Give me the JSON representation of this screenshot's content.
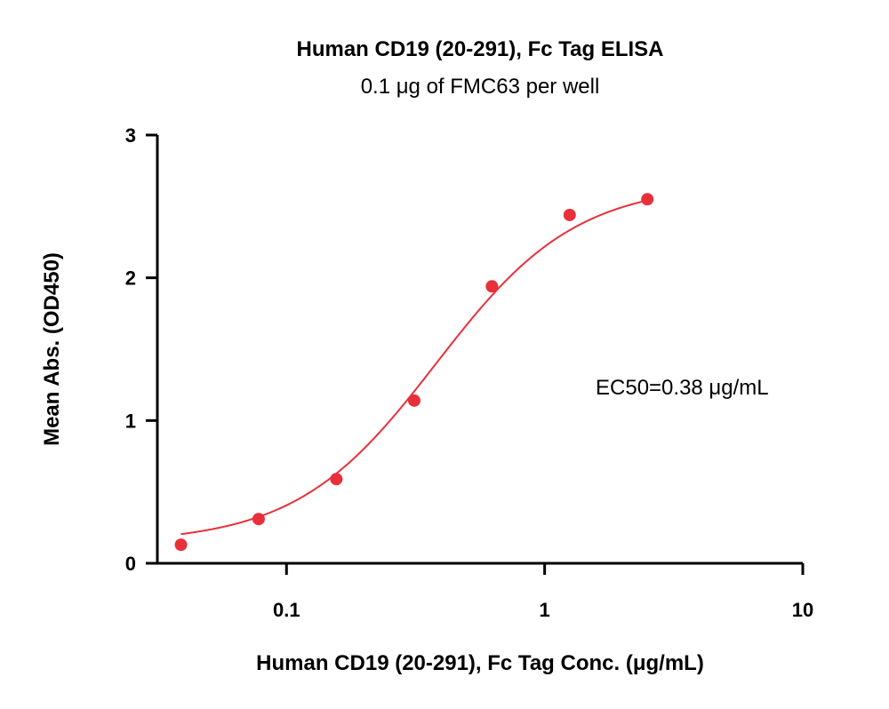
{
  "chart_data": {
    "type": "scatter",
    "title": "Human CD19 (20-291), Fc Tag ELISA",
    "subtitle": "0.1 μg of FMC63 per well",
    "xlabel": "Human CD19 (20-291), Fc Tag Conc. (μg/mL)",
    "ylabel": "Mean Abs. (OD450)",
    "x_scale": "log",
    "xlim": [
      0.0316,
      10
    ],
    "ylim": [
      0,
      3
    ],
    "x_ticks": [
      0.1,
      1,
      10
    ],
    "x_tick_labels": [
      "0.1",
      "1",
      "10"
    ],
    "y_ticks": [
      0,
      1,
      2,
      3
    ],
    "y_tick_labels": [
      "0",
      "1",
      "2",
      "3"
    ],
    "grid": false,
    "series": [
      {
        "x": [
          0.039,
          0.078,
          0.156,
          0.3125,
          0.625,
          1.25,
          2.5
        ],
        "y": [
          0.13,
          0.31,
          0.59,
          1.14,
          1.94,
          2.44,
          2.55
        ]
      }
    ],
    "fit": {
      "model": "4PL",
      "bottom": 0.14,
      "top": 2.66,
      "ec50": 0.38,
      "hill": 1.6
    },
    "annotation": "EC50=0.38 μg/mL",
    "color": "#e8303a"
  }
}
